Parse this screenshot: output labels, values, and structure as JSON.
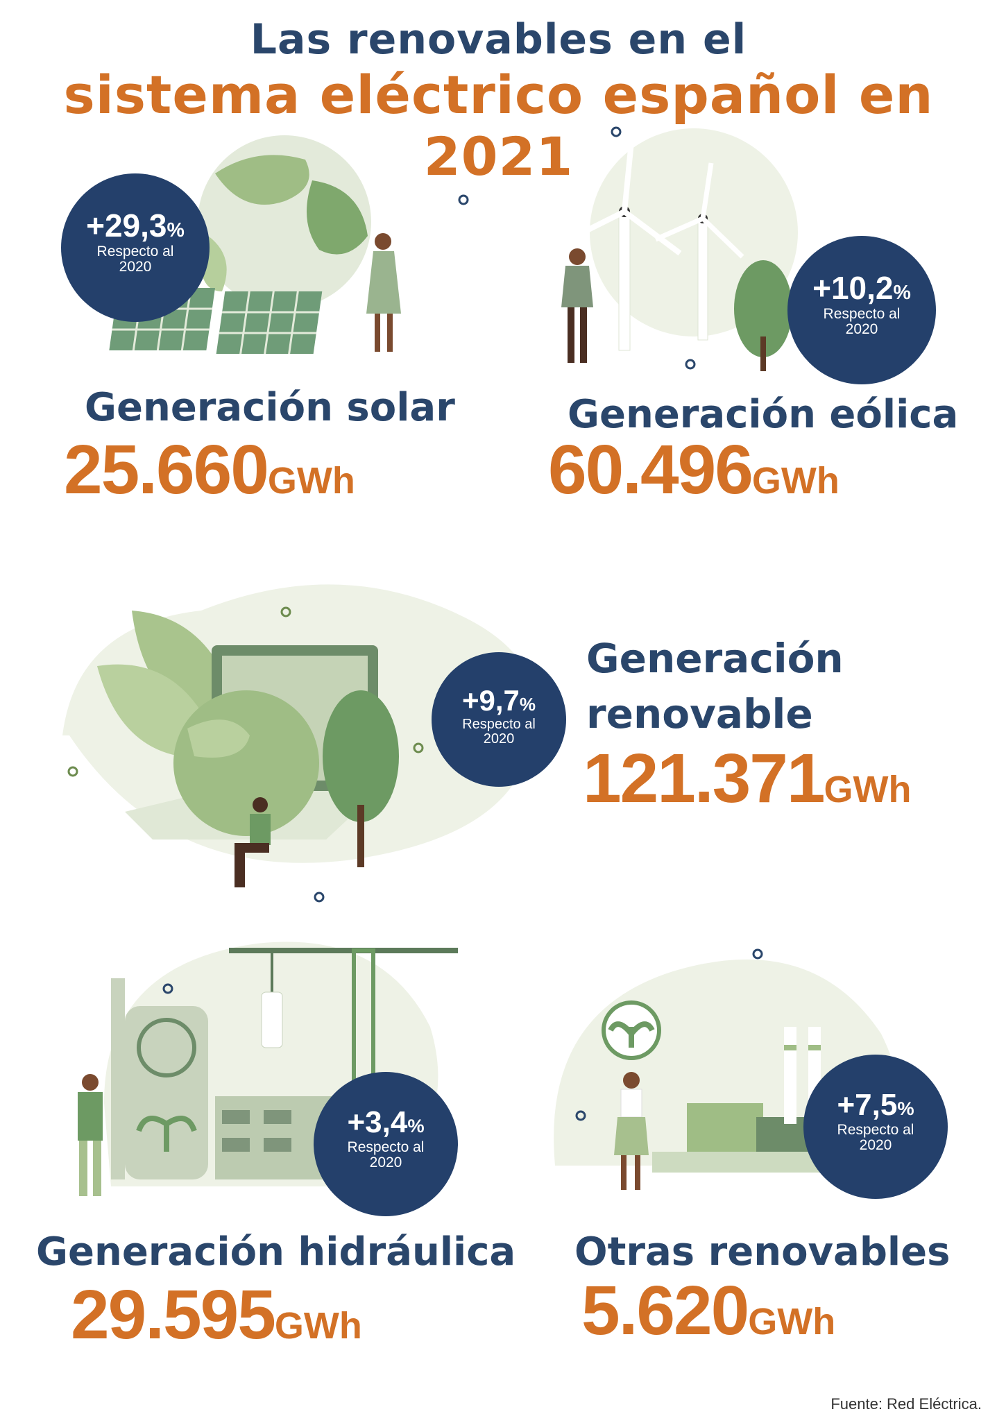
{
  "title": {
    "line1": "Las renovables en el",
    "line2": "sistema eléctrico español en 2021"
  },
  "colors": {
    "navy": "#24406b",
    "orange": "#d37126",
    "green_light": "#e6eddd",
    "green_mid": "#9fbf8a",
    "green_dark": "#6d9a63"
  },
  "sections": [
    {
      "id": "solar",
      "heading": "Generación solar",
      "value": "25.660",
      "unit": "GWh",
      "badge_pct": "+29,3",
      "badge_pct_symbol": "%",
      "badge_sub_1": "Respecto al",
      "badge_sub_2": "2020",
      "illustration": "globe-solar-panels-woman"
    },
    {
      "id": "eolica",
      "heading": "Generación eólica",
      "value": "60.496",
      "unit": "GWh",
      "badge_pct": "+10,2",
      "badge_pct_symbol": "%",
      "badge_sub_1": "Respecto al",
      "badge_sub_2": "2020",
      "illustration": "wind-turbines-woman-tree"
    },
    {
      "id": "renovable",
      "heading_line1": "Generación",
      "heading_line2": "renovable",
      "value": "121.371",
      "unit": "GWh",
      "badge_pct": "+9,7",
      "badge_pct_symbol": "%",
      "badge_sub_1": "Respecto al",
      "badge_sub_2": "2020",
      "illustration": "laptop-recycle-globe-man"
    },
    {
      "id": "hidraulica",
      "heading": "Generación hidráulica",
      "value": "29.595",
      "unit": "GWh",
      "badge_pct": "+3,4",
      "badge_pct_symbol": "%",
      "badge_sub_1": "Respecto al",
      "badge_sub_2": "2020",
      "illustration": "recycle-plant-crane-man"
    },
    {
      "id": "otras",
      "heading": "Otras renovables",
      "value": "5.620",
      "unit": "GWh",
      "badge_pct": "+7,5",
      "badge_pct_symbol": "%",
      "badge_sub_1": "Respecto al",
      "badge_sub_2": "2020",
      "illustration": "factory-woman-sprout"
    }
  ],
  "source": "Fuente: Red Eléctrica."
}
